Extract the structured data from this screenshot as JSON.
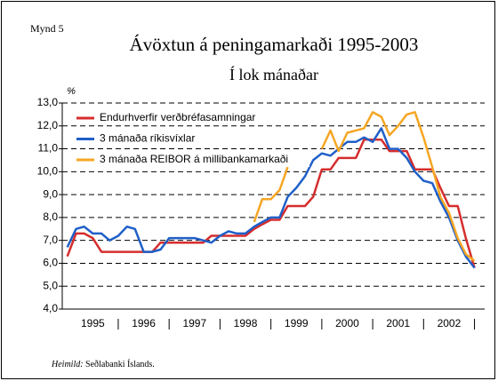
{
  "chart_data": {
    "type": "line",
    "figure_label": "Mynd 5",
    "title": "Ávöxtun á peningamarkaði 1995-2003",
    "subtitle": "Í lok mánaðar",
    "y_label": "%",
    "source_label": "Heimild:",
    "source": "Seðlabanki Íslands.",
    "x": [
      1995,
      1995.17,
      1995.33,
      1995.5,
      1995.67,
      1995.83,
      1996,
      1996.17,
      1996.33,
      1996.5,
      1996.67,
      1996.83,
      1997,
      1997.17,
      1997.33,
      1997.5,
      1997.67,
      1997.83,
      1998,
      1998.17,
      1998.33,
      1998.5,
      1998.67,
      1998.83,
      1999,
      1999.17,
      1999.33,
      1999.5,
      1999.67,
      1999.83,
      2000,
      2000.17,
      2000.33,
      2000.5,
      2000.67,
      2000.83,
      2001,
      2001.17,
      2001.33,
      2001.5,
      2001.67,
      2001.83,
      2002,
      2002.17,
      2002.33,
      2002.5,
      2002.67,
      2002.83,
      2003
    ],
    "series": [
      {
        "name": "Endurhverfir verðbréfasamningar",
        "color": "#d62d2d",
        "values": [
          6.3,
          7.3,
          7.3,
          7.1,
          6.5,
          6.5,
          6.5,
          6.5,
          6.5,
          6.5,
          6.5,
          6.9,
          6.9,
          6.9,
          6.9,
          6.9,
          6.9,
          7.2,
          7.2,
          7.2,
          7.2,
          7.2,
          7.5,
          7.7,
          7.9,
          7.9,
          8.5,
          8.5,
          8.5,
          8.9,
          10.1,
          10.1,
          10.6,
          10.6,
          10.6,
          11.4,
          11.4,
          11.4,
          10.9,
          10.9,
          10.9,
          10.1,
          10.1,
          10.1,
          9.3,
          8.5,
          8.5,
          7.1,
          5.8
        ]
      },
      {
        "name": "3 mánaða ríkisvíxlar",
        "color": "#1f5fc8",
        "values": [
          6.7,
          7.5,
          7.6,
          7.3,
          7.3,
          7.0,
          7.2,
          7.6,
          7.5,
          6.5,
          6.5,
          6.6,
          7.1,
          7.1,
          7.1,
          7.1,
          7.0,
          6.9,
          7.2,
          7.4,
          7.3,
          7.3,
          7.6,
          7.8,
          8.0,
          8.0,
          8.9,
          9.3,
          9.8,
          10.5,
          10.8,
          10.7,
          11.0,
          11.3,
          11.3,
          11.5,
          11.3,
          11.9,
          11.0,
          11.0,
          10.6,
          10.0,
          9.6,
          9.5,
          8.7,
          8.0,
          7.0,
          6.3,
          5.8
        ]
      },
      {
        "name": "3 mánaða REIBOR á millibankamarkaði",
        "color": "#f5a623",
        "values": [
          null,
          null,
          null,
          null,
          null,
          null,
          null,
          null,
          null,
          null,
          null,
          null,
          null,
          null,
          null,
          null,
          null,
          null,
          null,
          null,
          null,
          null,
          7.8,
          8.8,
          8.8,
          9.2,
          10.2,
          null,
          null,
          null,
          11.0,
          11.8,
          10.9,
          11.7,
          11.8,
          11.9,
          12.6,
          12.4,
          11.6,
          12.0,
          12.5,
          12.6,
          11.5,
          10.2,
          8.9,
          8.2,
          7.1,
          6.4,
          6.1
        ]
      }
    ],
    "xlim": [
      1994.9,
      2003.2
    ],
    "xticks": [
      {
        "value": 1995.5,
        "label": "1995"
      },
      {
        "value": 1996.5,
        "label": "1996"
      },
      {
        "value": 1997.5,
        "label": "1997"
      },
      {
        "value": 1998.5,
        "label": "1998"
      },
      {
        "value": 1999.5,
        "label": "1999"
      },
      {
        "value": 2000.5,
        "label": "2000"
      },
      {
        "value": 2001.5,
        "label": "2001"
      },
      {
        "value": 2002.5,
        "label": "2002"
      }
    ],
    "ylim": [
      4,
      13
    ],
    "yticks": [
      {
        "value": 4,
        "label": "4,0"
      },
      {
        "value": 5,
        "label": "5,0"
      },
      {
        "value": 6,
        "label": "6,0"
      },
      {
        "value": 7,
        "label": "7,0"
      },
      {
        "value": 8,
        "label": "8,0"
      },
      {
        "value": 9,
        "label": "9,0"
      },
      {
        "value": 10,
        "label": "10,0"
      },
      {
        "value": 11,
        "label": "11,0"
      },
      {
        "value": 12,
        "label": "12,0"
      },
      {
        "value": 13,
        "label": "13,0"
      }
    ],
    "grid": true,
    "legend": "top-left"
  }
}
